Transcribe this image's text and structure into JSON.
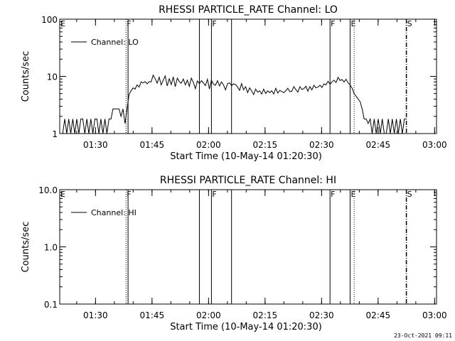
{
  "timestamp": "23-Oct-2021 09:11",
  "chart_data": [
    {
      "type": "line",
      "title": "RHESSI PARTICLE_RATE Channel: LO",
      "xlabel": "Start Time (10-May-14 01:20:30)",
      "ylabel": "Counts/sec",
      "x_unit": "time of day (hh:mm)",
      "xlim": [
        "01:20:30",
        "03:00:30"
      ],
      "xticks": [
        "01:30",
        "01:45",
        "02:00",
        "02:15",
        "02:30",
        "02:45",
        "03:00"
      ],
      "yscale": "log",
      "ylim": [
        1,
        100
      ],
      "yticks": [
        "1",
        "10",
        "100"
      ],
      "legend": {
        "position": "top-left",
        "entries": [
          "Channel: LO"
        ]
      },
      "series": [
        {
          "name": "Channel: LO",
          "color": "#000000",
          "points": [
            [
              "01:21:18",
              1.0
            ],
            [
              "01:21:50",
              1.8
            ],
            [
              "01:22:22",
              1.0
            ],
            [
              "01:22:54",
              1.8
            ],
            [
              "01:23:26",
              1.0
            ],
            [
              "01:23:58",
              1.8
            ],
            [
              "01:24:30",
              1.0
            ],
            [
              "01:25:02",
              1.8
            ],
            [
              "01:25:34",
              1.0
            ],
            [
              "01:26:06",
              1.8
            ],
            [
              "01:26:38",
              1.8
            ],
            [
              "01:27:10",
              1.0
            ],
            [
              "01:27:42",
              1.8
            ],
            [
              "01:28:14",
              1.0
            ],
            [
              "01:28:46",
              1.8
            ],
            [
              "01:29:18",
              1.0
            ],
            [
              "01:29:50",
              1.8
            ],
            [
              "01:30:22",
              1.8
            ],
            [
              "01:30:54",
              1.0
            ],
            [
              "01:31:26",
              1.8
            ],
            [
              "01:31:58",
              1.0
            ],
            [
              "01:32:30",
              1.8
            ],
            [
              "01:33:02",
              1.0
            ],
            [
              "01:33:34",
              1.8
            ],
            [
              "01:34:06",
              1.8
            ],
            [
              "01:34:38",
              2.7
            ],
            [
              "01:35:10",
              2.7
            ],
            [
              "01:35:42",
              2.7
            ],
            [
              "01:36:14",
              2.7
            ],
            [
              "01:36:46",
              2.0
            ],
            [
              "01:37:18",
              2.7
            ],
            [
              "01:37:50",
              1.5
            ],
            [
              "01:38:22",
              2.7
            ],
            [
              "01:38:54",
              4.8
            ],
            [
              "01:39:26",
              5.6
            ],
            [
              "01:39:58",
              6.3
            ],
            [
              "01:40:30",
              6.0
            ],
            [
              "01:41:02",
              7.1
            ],
            [
              "01:41:34",
              6.5
            ],
            [
              "01:42:06",
              8.0
            ],
            [
              "01:42:38",
              7.7
            ],
            [
              "01:43:10",
              8.1
            ],
            [
              "01:43:42",
              7.4
            ],
            [
              "01:44:14",
              8.1
            ],
            [
              "01:44:46",
              8.0
            ],
            [
              "01:45:18",
              10.5
            ],
            [
              "01:45:50",
              9.1
            ],
            [
              "01:46:22",
              7.6
            ],
            [
              "01:46:54",
              9.7
            ],
            [
              "01:47:26",
              7.1
            ],
            [
              "01:47:58",
              8.6
            ],
            [
              "01:48:30",
              10.2
            ],
            [
              "01:49:02",
              6.8
            ],
            [
              "01:49:34",
              9.1
            ],
            [
              "01:50:06",
              7.2
            ],
            [
              "01:50:38",
              9.8
            ],
            [
              "01:51:10",
              6.6
            ],
            [
              "01:51:42",
              9.3
            ],
            [
              "01:52:14",
              8.1
            ],
            [
              "01:52:46",
              7.6
            ],
            [
              "01:53:18",
              9.0
            ],
            [
              "01:53:50",
              7.1
            ],
            [
              "01:54:22",
              8.6
            ],
            [
              "01:54:54",
              6.7
            ],
            [
              "01:55:26",
              9.3
            ],
            [
              "01:55:58",
              7.8
            ],
            [
              "01:56:30",
              6.1
            ],
            [
              "01:57:02",
              8.3
            ],
            [
              "01:57:34",
              7.5
            ],
            [
              "01:58:06",
              8.4
            ],
            [
              "01:58:38",
              7.7
            ],
            [
              "01:59:10",
              6.9
            ],
            [
              "01:59:42",
              8.9
            ],
            [
              "02:00:14",
              6.0
            ],
            [
              "02:00:46",
              8.6
            ],
            [
              "02:01:18",
              7.3
            ],
            [
              "02:01:50",
              7.0
            ],
            [
              "02:02:22",
              8.4
            ],
            [
              "02:02:54",
              6.8
            ],
            [
              "02:03:26",
              8.0
            ],
            [
              "02:03:58",
              7.1
            ],
            [
              "02:04:30",
              5.8
            ],
            [
              "02:05:02",
              7.4
            ],
            [
              "02:05:34",
              7.7
            ],
            [
              "02:06:06",
              6.9
            ],
            [
              "02:06:38",
              7.4
            ],
            [
              "02:07:10",
              7.2
            ],
            [
              "02:07:42",
              6.5
            ],
            [
              "02:08:14",
              5.7
            ],
            [
              "02:08:46",
              7.5
            ],
            [
              "02:09:18",
              5.8
            ],
            [
              "02:09:50",
              6.6
            ],
            [
              "02:10:22",
              5.2
            ],
            [
              "02:10:54",
              6.3
            ],
            [
              "02:11:26",
              5.6
            ],
            [
              "02:11:58",
              4.8
            ],
            [
              "02:12:30",
              6.0
            ],
            [
              "02:13:02",
              5.3
            ],
            [
              "02:13:34",
              5.6
            ],
            [
              "02:14:06",
              4.9
            ],
            [
              "02:14:38",
              6.0
            ],
            [
              "02:15:10",
              5.0
            ],
            [
              "02:15:42",
              5.6
            ],
            [
              "02:16:14",
              5.2
            ],
            [
              "02:16:46",
              5.6
            ],
            [
              "02:17:18",
              4.9
            ],
            [
              "02:17:50",
              6.2
            ],
            [
              "02:18:22",
              5.1
            ],
            [
              "02:18:54",
              5.7
            ],
            [
              "02:19:26",
              5.4
            ],
            [
              "02:19:58",
              5.2
            ],
            [
              "02:20:30",
              5.6
            ],
            [
              "02:21:02",
              6.2
            ],
            [
              "02:21:34",
              5.4
            ],
            [
              "02:22:06",
              5.5
            ],
            [
              "02:22:38",
              6.6
            ],
            [
              "02:23:10",
              5.9
            ],
            [
              "02:23:42",
              5.3
            ],
            [
              "02:24:14",
              6.6
            ],
            [
              "02:24:46",
              5.9
            ],
            [
              "02:25:18",
              6.1
            ],
            [
              "02:25:50",
              6.7
            ],
            [
              "02:26:22",
              5.5
            ],
            [
              "02:26:54",
              6.6
            ],
            [
              "02:27:26",
              5.8
            ],
            [
              "02:27:58",
              7.0
            ],
            [
              "02:28:30",
              6.3
            ],
            [
              "02:29:02",
              6.5
            ],
            [
              "02:29:34",
              7.0
            ],
            [
              "02:30:06",
              6.4
            ],
            [
              "02:30:38",
              7.4
            ],
            [
              "02:31:10",
              7.1
            ],
            [
              "02:31:42",
              8.2
            ],
            [
              "02:32:14",
              7.3
            ],
            [
              "02:32:46",
              8.0
            ],
            [
              "02:33:18",
              8.6
            ],
            [
              "02:33:50",
              7.8
            ],
            [
              "02:34:22",
              9.6
            ],
            [
              "02:34:54",
              8.5
            ],
            [
              "02:35:26",
              8.8
            ],
            [
              "02:35:58",
              8.0
            ],
            [
              "02:36:30",
              8.9
            ],
            [
              "02:37:02",
              7.7
            ],
            [
              "02:37:34",
              7.1
            ],
            [
              "02:38:06",
              6.2
            ],
            [
              "02:38:38",
              5.0
            ],
            [
              "02:39:10",
              4.5
            ],
            [
              "02:39:42",
              4.0
            ],
            [
              "02:40:14",
              3.6
            ],
            [
              "02:40:46",
              2.7
            ],
            [
              "02:41:18",
              1.8
            ],
            [
              "02:41:50",
              1.8
            ],
            [
              "02:42:22",
              1.5
            ],
            [
              "02:42:54",
              1.8
            ],
            [
              "02:43:26",
              1.0
            ],
            [
              "02:43:58",
              1.8
            ],
            [
              "02:44:30",
              1.0
            ],
            [
              "02:45:02",
              1.8
            ],
            [
              "02:45:34",
              1.0
            ],
            [
              "02:46:06",
              1.8
            ],
            [
              "02:46:38",
              1.0
            ],
            [
              "02:47:10",
              1.0
            ],
            [
              "02:47:42",
              1.8
            ],
            [
              "02:48:14",
              1.0
            ],
            [
              "02:48:46",
              1.8
            ],
            [
              "02:49:18",
              1.0
            ],
            [
              "02:49:50",
              1.8
            ],
            [
              "02:50:22",
              1.0
            ],
            [
              "02:50:54",
              1.8
            ],
            [
              "02:51:26",
              1.0
            ],
            [
              "02:51:58",
              1.8
            ],
            [
              "02:52:30",
              1.8
            ]
          ]
        }
      ],
      "markers": [
        {
          "label": "E",
          "time": "01:20:30",
          "style": "none"
        },
        {
          "label": "F",
          "time": "01:38:06",
          "style": "dotted"
        },
        {
          "label": "",
          "time": "01:38:38",
          "style": "solid"
        },
        {
          "label": "",
          "time": "01:57:34",
          "style": "solid"
        },
        {
          "label": "F",
          "time": "02:00:46",
          "style": "solid"
        },
        {
          "label": "",
          "time": "02:06:06",
          "style": "solid"
        },
        {
          "label": "F",
          "time": "02:32:14",
          "style": "solid"
        },
        {
          "label": "E",
          "time": "02:37:34",
          "style": "solid"
        },
        {
          "label": "",
          "time": "02:38:38",
          "style": "dotted"
        },
        {
          "label": "S",
          "time": "02:52:30",
          "style": "dashdot"
        }
      ]
    },
    {
      "type": "line",
      "title": "RHESSI PARTICLE_RATE Channel: HI",
      "xlabel": "Start Time (10-May-14 01:20:30)",
      "ylabel": "Counts/sec",
      "x_unit": "time of day (hh:mm)",
      "xlim": [
        "01:20:30",
        "03:00:30"
      ],
      "xticks": [
        "01:30",
        "01:45",
        "02:00",
        "02:15",
        "02:30",
        "02:45",
        "03:00"
      ],
      "yscale": "log",
      "ylim": [
        0.1,
        10
      ],
      "yticks": [
        "0.1",
        "1.0",
        "10.0"
      ],
      "legend": {
        "position": "top-left",
        "entries": [
          "Channel: HI"
        ]
      },
      "series": [
        {
          "name": "Channel: HI",
          "color": "#000000",
          "points": []
        }
      ],
      "markers": [
        {
          "label": "E",
          "time": "01:20:30",
          "style": "none"
        },
        {
          "label": "F",
          "time": "01:38:06",
          "style": "dotted"
        },
        {
          "label": "",
          "time": "01:38:38",
          "style": "solid"
        },
        {
          "label": "",
          "time": "01:57:34",
          "style": "solid"
        },
        {
          "label": "F",
          "time": "02:00:46",
          "style": "solid"
        },
        {
          "label": "",
          "time": "02:06:06",
          "style": "solid"
        },
        {
          "label": "F",
          "time": "02:32:14",
          "style": "solid"
        },
        {
          "label": "E",
          "time": "02:37:34",
          "style": "solid"
        },
        {
          "label": "",
          "time": "02:38:38",
          "style": "dotted"
        },
        {
          "label": "S",
          "time": "02:52:30",
          "style": "dashdot"
        }
      ]
    }
  ]
}
